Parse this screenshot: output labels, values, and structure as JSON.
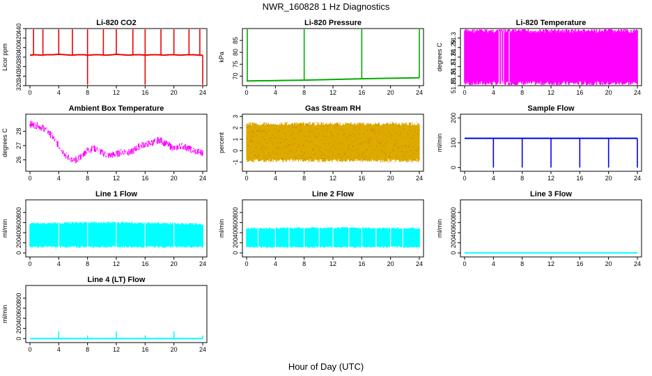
{
  "figure": {
    "title": "NWR_160828  1 Hz Diagnostics",
    "xlabel": "Hour of Day (UTC)"
  },
  "chart_data": [
    {
      "type": "line",
      "title": "Li-820 CO2",
      "ylabel": "Licor ppm",
      "color": "#ee0000",
      "xlim": [
        0,
        24
      ],
      "ylim": [
        320,
        440
      ],
      "xticks": [
        0,
        4,
        8,
        12,
        16,
        20,
        24
      ],
      "yticks": [
        320,
        340,
        360,
        380,
        400,
        420,
        440
      ],
      "x": [
        0,
        0.8,
        1.5,
        2.3,
        3.2,
        4.0,
        4.9,
        5.8,
        6.6,
        7.5,
        8.0,
        8.9,
        9.7,
        10.6,
        11.5,
        12.0,
        12.8,
        13.7,
        14.6,
        15.4,
        16.0,
        16.9,
        17.8,
        18.6,
        19.4,
        20.0,
        20.9,
        21.8,
        22.7,
        23.6,
        24.0
      ],
      "values": [
        384,
        385,
        384,
        385,
        385,
        386,
        385,
        384,
        385,
        385,
        384,
        385,
        385,
        384,
        385,
        386,
        385,
        384,
        385,
        385,
        384,
        385,
        385,
        384,
        385,
        385,
        384,
        385,
        385,
        384,
        384
      ],
      "spikes_up": [
        0.5,
        1.8,
        4.0,
        5.9,
        8.0,
        10.2,
        12.0,
        14.3,
        16.0,
        18.2,
        20.0,
        22.1,
        23.6
      ],
      "spike_high": 440,
      "spikes_down": [
        8.0,
        16.0,
        24.0
      ],
      "spike_low": 322
    },
    {
      "type": "line",
      "title": "Li-820 Pressure",
      "ylabel": "kPa",
      "color": "#00aa00",
      "xlim": [
        0,
        24
      ],
      "ylim": [
        66,
        90
      ],
      "xticks": [
        0,
        4,
        8,
        12,
        16,
        20,
        24
      ],
      "yticks": [
        70,
        75,
        80,
        85
      ],
      "x": [
        0,
        4,
        8,
        12,
        16,
        20,
        24
      ],
      "values": [
        68.0,
        68.1,
        68.3,
        68.6,
        68.9,
        69.1,
        69.3
      ],
      "spikes_up": [
        0.1,
        8.0,
        16.0,
        24.0
      ],
      "spike_high": 90
    },
    {
      "type": "area",
      "title": "Li-820 Temperature",
      "ylabel": "degrees C",
      "color": "#ff00ff",
      "xlim": [
        0,
        24
      ],
      "ylim": [
        51.25,
        51.31
      ],
      "xticks": [
        0,
        4,
        8,
        12,
        16,
        20,
        24
      ],
      "yticks": [
        51.25,
        51.26,
        51.27,
        51.28,
        51.29,
        51.3
      ],
      "x": [
        0,
        24
      ],
      "band_low": 51.25,
      "band_high": 51.31,
      "gap_x": [
        4.8,
        5.1,
        5.4,
        6.2
      ]
    },
    {
      "type": "line",
      "title": "Ambient Box Temperature",
      "ylabel": "degrees C",
      "color": "#ff00ff",
      "xlim": [
        0,
        24
      ],
      "ylim": [
        25.2,
        29.2
      ],
      "xticks": [
        0,
        4,
        8,
        12,
        16,
        20,
        24
      ],
      "yticks": [
        26,
        27,
        28
      ],
      "x": [
        0,
        1,
        2,
        3,
        4,
        5,
        6,
        7,
        8,
        9,
        10,
        11,
        12,
        13,
        14,
        15,
        16,
        17,
        18,
        19,
        20,
        21,
        22,
        23,
        24
      ],
      "values": [
        28.5,
        28.4,
        28.2,
        27.7,
        27.0,
        26.3,
        25.9,
        26.2,
        26.7,
        26.8,
        26.5,
        26.3,
        26.4,
        26.6,
        26.5,
        26.9,
        27.1,
        27.2,
        27.4,
        27.1,
        26.8,
        27.0,
        26.8,
        26.6,
        26.5
      ],
      "noise": 0.25
    },
    {
      "type": "line",
      "title": "Gas Stream RH",
      "ylabel": "percent",
      "color": "#ddaa00",
      "xlim": [
        0,
        24
      ],
      "ylim": [
        -1.8,
        3.2
      ],
      "xticks": [
        0,
        4,
        8,
        12,
        16,
        20,
        24
      ],
      "yticks": [
        -1,
        0,
        1,
        2,
        3
      ],
      "x": [
        0,
        24
      ],
      "band_low": -1.0,
      "band_high": 2.5
    },
    {
      "type": "line",
      "title": "Sample Flow",
      "ylabel": "ml/min",
      "color": "#0000ee",
      "xlim": [
        0,
        24
      ],
      "ylim": [
        -15,
        215
      ],
      "xticks": [
        0,
        4,
        8,
        12,
        16,
        20,
        24
      ],
      "yticks": [
        0,
        100,
        200
      ],
      "x": [
        0,
        4,
        8,
        12,
        16,
        20,
        24
      ],
      "values": [
        118,
        118,
        118,
        118,
        118,
        118,
        118
      ],
      "spikes_down": [
        4.0,
        8.0,
        12.0,
        16.0,
        20.0,
        24.0
      ],
      "spike_low": 0
    },
    {
      "type": "area",
      "title": "Line 1 Flow",
      "ylabel": "ml/min",
      "color": "#00ffff",
      "xlim": [
        0,
        24
      ],
      "ylim": [
        -80,
        1050
      ],
      "xticks": [
        0,
        4,
        8,
        12,
        16,
        20,
        24
      ],
      "yticks": [
        0,
        200,
        400,
        600,
        800
      ],
      "x": [
        0,
        4,
        8,
        12,
        16,
        20,
        24
      ],
      "band_low": 100,
      "band_high": [
        600,
        610,
        620,
        625,
        610,
        600,
        590
      ],
      "gap_x": [
        4.0,
        8.0,
        12.0,
        16.0,
        20.0
      ]
    },
    {
      "type": "area",
      "title": "Line 2 Flow",
      "ylabel": "ml/min",
      "color": "#00ffff",
      "xlim": [
        0,
        24
      ],
      "ylim": [
        -80,
        1050
      ],
      "xticks": [
        0,
        4,
        8,
        12,
        16,
        20,
        24
      ],
      "yticks": [
        0,
        200,
        400,
        600,
        800
      ],
      "x": [
        0,
        4,
        8,
        12,
        16,
        20,
        24
      ],
      "band_low": 100,
      "band_high": [
        500,
        505,
        510,
        515,
        510,
        505,
        500
      ],
      "gap_x": [
        1.6,
        4.0,
        5.9,
        8.0,
        10.1,
        12.0,
        14.2,
        16.0,
        18.0,
        20.0,
        21.7
      ]
    },
    {
      "type": "line",
      "title": "Line 3 Flow",
      "ylabel": "ml/min",
      "color": "#00ffff",
      "xlim": [
        0,
        24
      ],
      "ylim": [
        -80,
        1050
      ],
      "xticks": [
        0,
        4,
        8,
        12,
        16,
        20,
        24
      ],
      "yticks": [
        0,
        200,
        400,
        600,
        800
      ],
      "x": [
        0,
        24
      ],
      "values": [
        0,
        0
      ]
    },
    {
      "type": "line",
      "title": "Line 4 (LT) Flow",
      "ylabel": "ml/min",
      "color": "#00ffff",
      "xlim": [
        0,
        24
      ],
      "ylim": [
        -80,
        1050
      ],
      "xticks": [
        0,
        4,
        8,
        12,
        16,
        20,
        24
      ],
      "yticks": [
        0,
        200,
        400,
        600,
        800
      ],
      "x": [
        0,
        24
      ],
      "values": [
        0,
        0
      ],
      "spikes_up": [
        4.0,
        8.0,
        12.0,
        16.0,
        20.0,
        24.0
      ],
      "spike_heights": [
        140,
        60,
        140,
        60,
        140,
        60
      ]
    }
  ]
}
